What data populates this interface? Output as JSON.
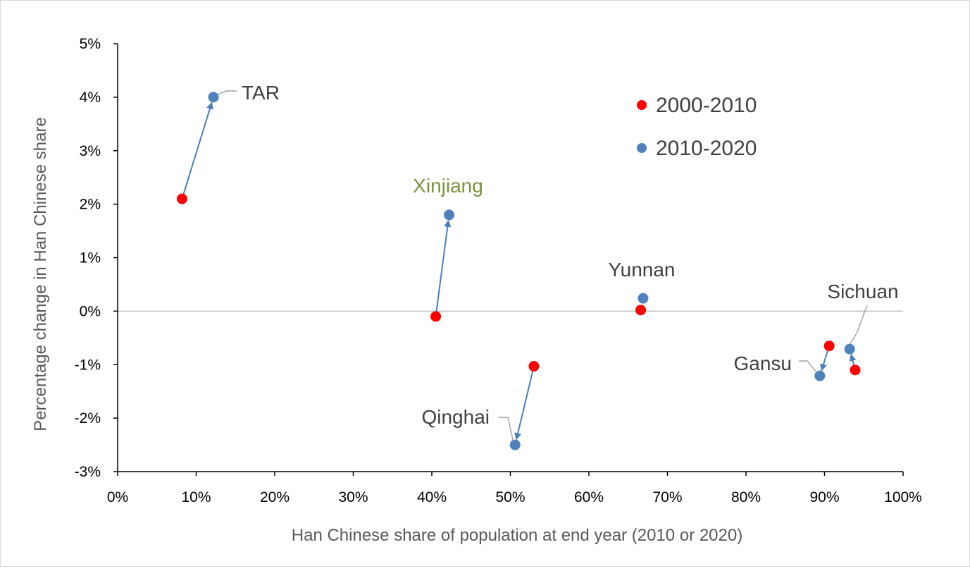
{
  "chart_data": {
    "type": "scatter",
    "xlabel": "Han Chinese share of population at end year (2010 or 2020)",
    "ylabel": "Percentage change in Han Chinese share",
    "xlim": [
      0,
      100
    ],
    "ylim": [
      -3,
      5
    ],
    "x_ticks": [
      0,
      10,
      20,
      30,
      40,
      50,
      60,
      70,
      80,
      90,
      100
    ],
    "y_ticks": [
      -3,
      -2,
      -1,
      0,
      1,
      2,
      3,
      4,
      5
    ],
    "x_tick_labels": [
      "0%",
      "10%",
      "20%",
      "30%",
      "40%",
      "50%",
      "60%",
      "70%",
      "80%",
      "90%",
      "100%"
    ],
    "y_tick_labels": [
      "-3%",
      "-2%",
      "-1%",
      "0%",
      "1%",
      "2%",
      "3%",
      "4%",
      "5%"
    ],
    "zero_line": true,
    "legend_position": "top-right",
    "series": [
      {
        "name": "2000-2010",
        "color": "#ff0000",
        "points": [
          {
            "region": "TAR",
            "x": 8.2,
            "y": 2.1
          },
          {
            "region": "Xinjiang",
            "x": 40.5,
            "y": -0.1
          },
          {
            "region": "Qinghai",
            "x": 53.0,
            "y": -1.03
          },
          {
            "region": "Yunnan",
            "x": 66.6,
            "y": 0.02
          },
          {
            "region": "Gansu",
            "x": 90.6,
            "y": -0.65
          },
          {
            "region": "Sichuan",
            "x": 93.9,
            "y": -1.1
          }
        ]
      },
      {
        "name": "2010-2020",
        "color": "#4f81bd",
        "points": [
          {
            "region": "TAR",
            "x": 12.2,
            "y": 4.0
          },
          {
            "region": "Xinjiang",
            "x": 42.2,
            "y": 1.8
          },
          {
            "region": "Qinghai",
            "x": 50.6,
            "y": -2.5
          },
          {
            "region": "Yunnan",
            "x": 66.9,
            "y": 0.24
          },
          {
            "region": "Gansu",
            "x": 89.4,
            "y": -1.21
          },
          {
            "region": "Sichuan",
            "x": 93.2,
            "y": -0.71
          }
        ]
      }
    ],
    "arrows": [
      {
        "region": "TAR",
        "from": [
          8.2,
          2.1
        ],
        "to": [
          12.2,
          4.0
        ]
      },
      {
        "region": "Xinjiang",
        "from": [
          40.5,
          -0.1
        ],
        "to": [
          42.2,
          1.8
        ]
      },
      {
        "region": "Qinghai",
        "from": [
          53.0,
          -1.03
        ],
        "to": [
          50.6,
          -2.5
        ]
      },
      {
        "region": "Gansu",
        "from": [
          90.6,
          -0.65
        ],
        "to": [
          89.4,
          -1.21
        ]
      },
      {
        "region": "Sichuan",
        "from": [
          93.9,
          -1.1
        ],
        "to": [
          93.2,
          -0.71
        ]
      }
    ],
    "region_labels": [
      {
        "text": "TAR",
        "color": "#404040",
        "leader": true
      },
      {
        "text": "Xinjiang",
        "color": "#77933c",
        "leader": false
      },
      {
        "text": "Yunnan",
        "color": "#404040",
        "leader": false
      },
      {
        "text": "Sichuan",
        "color": "#404040",
        "leader": true
      },
      {
        "text": "Gansu",
        "color": "#404040",
        "leader": true
      },
      {
        "text": "Qinghai",
        "color": "#404040",
        "leader": true
      }
    ]
  }
}
